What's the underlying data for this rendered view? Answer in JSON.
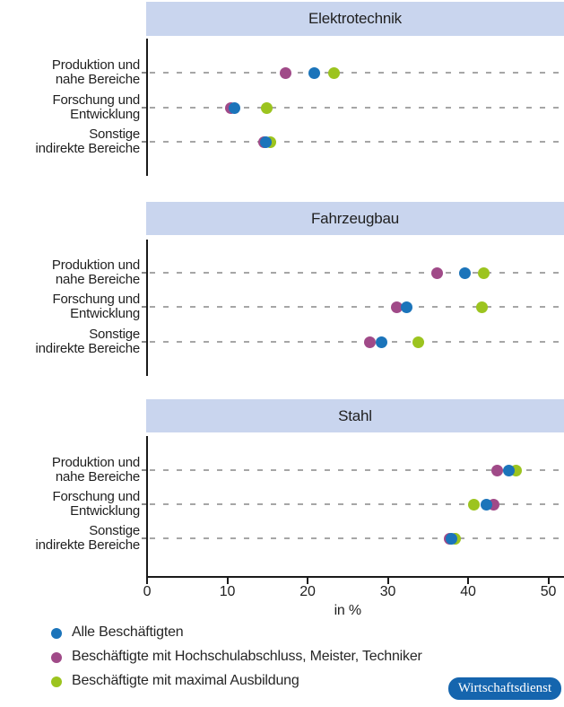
{
  "chart_data": {
    "type": "scatter",
    "title": "",
    "xlabel": "in %",
    "xlim": [
      0,
      52
    ],
    "xticks": [
      0,
      10,
      20,
      30,
      40,
      50
    ],
    "grid": "horizontal dashed per category row",
    "legend_position": "bottom-left",
    "categories": [
      "Produktion und nahe Bereiche",
      "Forschung und Entwicklung",
      "Sonstige indirekte Bereiche"
    ],
    "category_lines": [
      [
        "Produktion und",
        "nahe Bereiche"
      ],
      [
        "Forschung und",
        "Entwicklung"
      ],
      [
        "Sonstige",
        "indirekte Bereiche"
      ]
    ],
    "series_names": [
      "Alle Beschäftigten",
      "Beschäftigte mit Hochschulabschluss, Meister, Techniker",
      "Beschäftigte mit maximal Ausbildung"
    ],
    "panels": [
      {
        "title": "Elektrotechnik",
        "series": [
          {
            "name": "Alle Beschäftigten",
            "values": [
              20.8,
              10.9,
              14.8
            ]
          },
          {
            "name": "Beschäftigte mit Hochschulabschluss, Meister, Techniker",
            "values": [
              17.3,
              10.4,
              14.6
            ]
          },
          {
            "name": "Beschäftigte mit maximal Ausbildung",
            "values": [
              23.3,
              14.9,
              15.4
            ]
          }
        ]
      },
      {
        "title": "Fahrzeugbau",
        "series": [
          {
            "name": "Alle Beschäftigten",
            "values": [
              39.6,
              32.3,
              29.2
            ]
          },
          {
            "name": "Beschäftigte mit Hochschulabschluss, Meister, Techniker",
            "values": [
              36.2,
              31.1,
              27.8
            ]
          },
          {
            "name": "Beschäftigte mit maximal Ausbildung",
            "values": [
              42.0,
              41.7,
              33.8
            ]
          }
        ]
      },
      {
        "title": "Stahl",
        "series": [
          {
            "name": "Alle Beschäftigten",
            "values": [
              45.1,
              42.3,
              37.9
            ]
          },
          {
            "name": "Beschäftigte mit Hochschulabschluss, Meister, Techniker",
            "values": [
              43.6,
              43.2,
              37.7
            ]
          },
          {
            "name": "Beschäftigte mit maximal Ausbildung",
            "values": [
              46.0,
              40.7,
              38.4
            ]
          }
        ]
      }
    ]
  },
  "legend": {
    "items": [
      {
        "label": "Alle Beschäftigten",
        "color": "#1b74ba"
      },
      {
        "label": "Beschäftigte mit Hochschulabschluss, Meister, Techniker",
        "color": "#a04a88"
      },
      {
        "label": "Beschäftigte mit maximal Ausbildung",
        "color": "#9cc41f"
      }
    ]
  },
  "branding": {
    "label": "Wirtschaftsdienst",
    "badge_color": "#1565ae"
  },
  "colors": {
    "series_blue": "#1b74ba",
    "series_purple": "#a04a88",
    "series_green": "#9cc41f",
    "panel_header_bg": "#c9d5ee",
    "gridline": "#a6a6a6",
    "axis": "#1a1a1a"
  }
}
